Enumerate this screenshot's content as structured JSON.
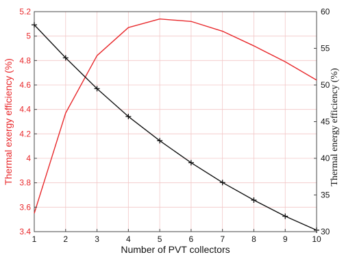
{
  "chart_data": {
    "type": "line",
    "x": [
      1,
      2,
      3,
      4,
      5,
      6,
      7,
      8,
      9,
      10
    ],
    "xlabel": "Number of PVT collectors",
    "xlim": [
      1,
      10
    ],
    "x_ticks": [
      "1",
      "2",
      "3",
      "4",
      "5",
      "6",
      "7",
      "8",
      "9",
      "10"
    ],
    "y_left": {
      "label": "Thermal exergy efficiency (%)",
      "lim": [
        3.4,
        5.2
      ],
      "ticks": [
        "3.4",
        "3.6",
        "3.8",
        "4",
        "4.2",
        "4.4",
        "4.6",
        "4.8",
        "5",
        "5.2"
      ],
      "color": "#e8282b"
    },
    "y_right": {
      "label": "Thermal energy efficiency (%)",
      "lim": [
        30,
        60
      ],
      "ticks": [
        "30",
        "35",
        "40",
        "45",
        "50",
        "55",
        "60"
      ],
      "color": "#111111"
    },
    "grid": true,
    "series": [
      {
        "axis": "left",
        "color": "#e8282b",
        "marker": "none",
        "values": [
          3.55,
          4.37,
          4.84,
          5.07,
          5.14,
          5.12,
          5.04,
          4.92,
          4.79,
          4.64
        ]
      },
      {
        "axis": "right",
        "color": "#111111",
        "marker": "plus",
        "values": [
          58.2,
          53.7,
          49.5,
          45.7,
          42.4,
          39.4,
          36.7,
          34.3,
          32.1,
          30.2
        ]
      }
    ]
  }
}
